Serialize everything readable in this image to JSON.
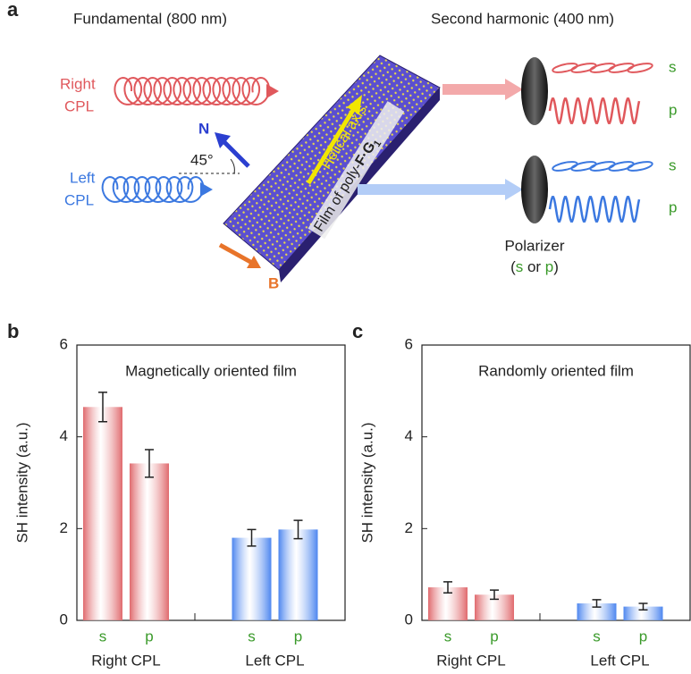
{
  "panel_a": {
    "label": "a",
    "fundamental": "Fundamental (800 nm)",
    "second_harmonic": "Second harmonic (400 nm)",
    "right_cpl": [
      "Right",
      "CPL"
    ],
    "left_cpl": [
      "Left",
      "CPL"
    ],
    "normal": "N",
    "angle": "45°",
    "helical_axis": "Helical axis",
    "film": [
      "Film of poly-",
      "F·G",
      "1"
    ],
    "field": "B",
    "outputs": [
      "s",
      "p",
      "s",
      "p"
    ],
    "polarizer": "Polarizer",
    "polarizer_choice": [
      "(",
      "s",
      " or ",
      "p",
      ")"
    ]
  },
  "chart_data": [
    {
      "type": "bar",
      "label": "b",
      "title": "Magnetically oriented film",
      "y_label": "SH intensity (a.u.)",
      "categories": [
        "s",
        "p"
      ],
      "ylim": [
        0,
        6
      ],
      "yticks": [
        0,
        2,
        4,
        6
      ],
      "series": [
        {
          "name": "Right CPL",
          "color": "#e06a6e",
          "values": [
            4.65,
            3.42
          ],
          "errors": [
            0.32,
            0.3
          ]
        },
        {
          "name": "Left CPL",
          "color": "#4d86ef",
          "values": [
            1.8,
            1.98
          ],
          "errors": [
            0.18,
            0.2
          ]
        }
      ]
    },
    {
      "type": "bar",
      "label": "c",
      "title": "Randomly oriented film",
      "y_label": "SH intensity (a.u.)",
      "categories": [
        "s",
        "p"
      ],
      "ylim": [
        0,
        6
      ],
      "yticks": [
        0,
        2,
        4,
        6
      ],
      "series": [
        {
          "name": "Right CPL",
          "color": "#e06a6e",
          "values": [
            0.72,
            0.56
          ],
          "errors": [
            0.12,
            0.1
          ]
        },
        {
          "name": "Left CPL",
          "color": "#4d86ef",
          "values": [
            0.37,
            0.3
          ],
          "errors": [
            0.08,
            0.07
          ]
        }
      ]
    }
  ]
}
